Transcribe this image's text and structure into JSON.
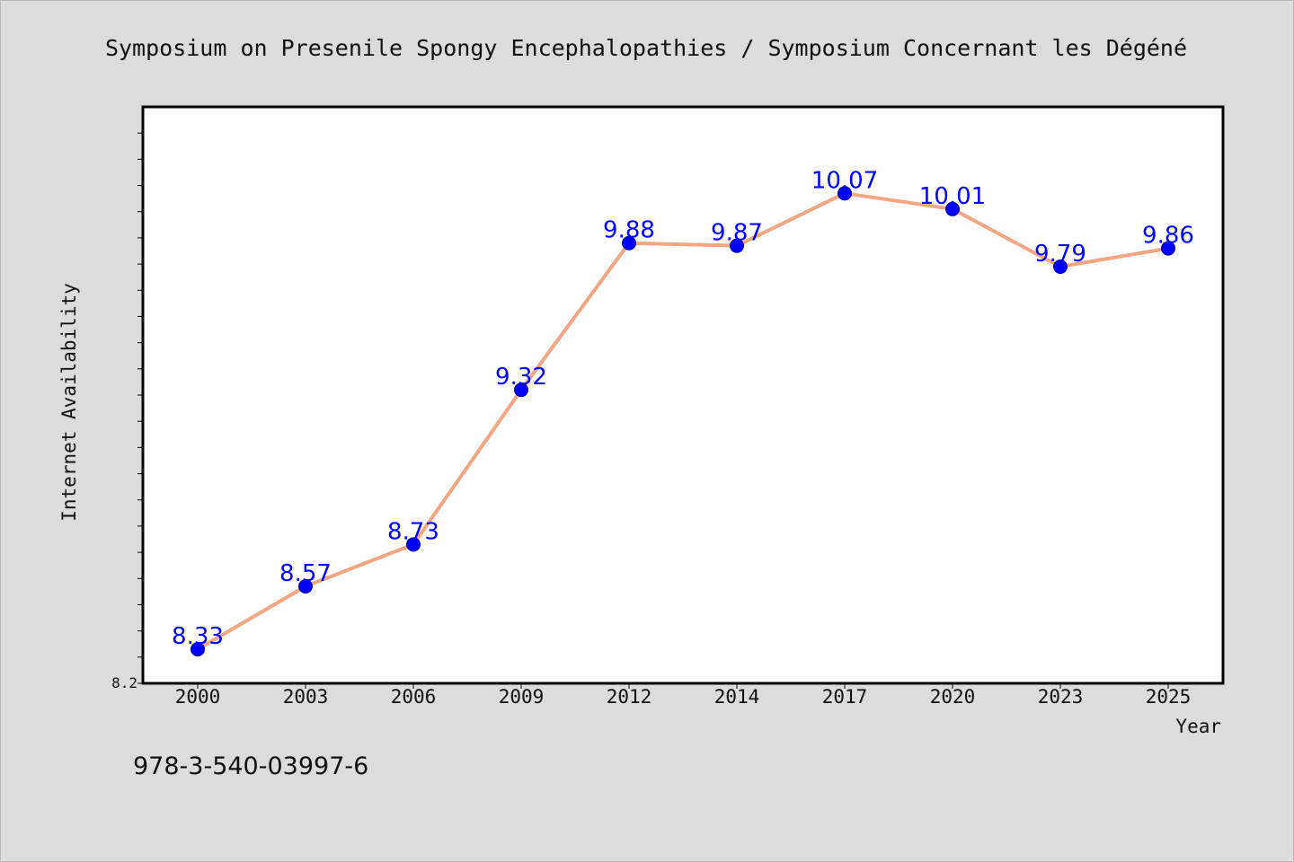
{
  "chart_data": {
    "type": "line",
    "title": "Symposium on Presenile Spongy Encephalopathies / Symposium Concernant les Dégéné",
    "xlabel": "Year",
    "ylabel": "Internet Availability",
    "categories": [
      "2000",
      "2003",
      "2006",
      "2009",
      "2012",
      "2014",
      "2017",
      "2020",
      "2023",
      "2025"
    ],
    "series": [
      {
        "values": [
          8.33,
          8.57,
          8.73,
          9.32,
          9.88,
          9.87,
          10.07,
          10.01,
          9.79,
          9.86
        ],
        "data_labels": [
          "8.33",
          "8.57",
          "8.73",
          "9.32",
          "9.88",
          "9.87",
          "10.07",
          "10.01",
          "9.79",
          "9.86"
        ]
      }
    ],
    "ylim": [
      8.2,
      10.4
    ],
    "yticks_labeled": [
      "8.2"
    ],
    "grid": false,
    "legend": "none",
    "colors": {
      "line": "#f4a582",
      "marker": "#0000ff",
      "data_label": "#0000ff",
      "plot_background": "#ffffff",
      "figure_background": "#dcdcdc"
    }
  },
  "footnote": "978-3-540-03997-6"
}
